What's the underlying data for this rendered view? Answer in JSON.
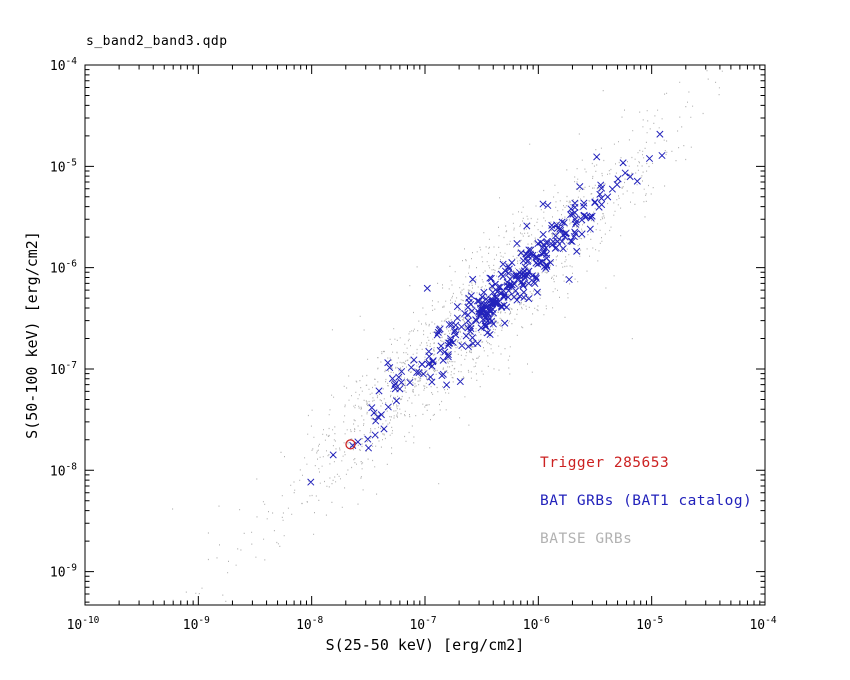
{
  "chart_data": {
    "type": "scatter",
    "title": "s_band2_band3.qdp",
    "xlabel": "S(25-50 keV) [erg/cm2]",
    "ylabel": "S(50-100 keV) [erg/cm2]",
    "x_scale": "log",
    "y_scale": "log",
    "xlim_log10": [
      -10,
      -4
    ],
    "ylim_log10": [
      -9.33,
      -4
    ],
    "x_major_ticks_log10": [
      -10,
      -9,
      -8,
      -7,
      -6,
      -5,
      -4
    ],
    "y_major_ticks_log10": [
      -9,
      -8,
      -7,
      -6,
      -5,
      -4
    ],
    "grid": false,
    "frame": "box-with-inward-ticks",
    "series": [
      {
        "name": "BATSE GRBs",
        "marker": "dot",
        "color": "#b2b2b2",
        "n": 1800,
        "gen": {
          "seed": 42,
          "logx_mean": -6.6,
          "logx_sd": 0.78,
          "uniform_frac": 0.03,
          "logx_uniform_min": -9.7,
          "logx_uniform_max": -4.6,
          "slope": 1.05,
          "intercept": 0.4,
          "logy_scatter": 0.28,
          "outlier_frac": 0.05,
          "outlier_scatter": 0.65
        }
      },
      {
        "name": "BAT GRBs (BAT1 catalog)",
        "marker": "cross",
        "color": "#2222bb",
        "n": 340,
        "gen": {
          "seed": 7,
          "logx_mean": -6.35,
          "logx_sd": 0.55,
          "uniform_frac": 0.02,
          "logx_uniform_min": -8.2,
          "logx_uniform_max": -5.1,
          "slope": 1.05,
          "intercept": 0.4,
          "logy_scatter": 0.13,
          "outlier_frac": 0.03,
          "outlier_scatter": 0.3
        }
      },
      {
        "name": "Trigger 285653",
        "marker": "open-circle",
        "color": "#cc2222",
        "points": [
          [
            2.2e-08,
            1.8e-08
          ]
        ]
      }
    ]
  },
  "legend": {
    "items": [
      {
        "label": "Trigger 285653",
        "color": "#cc2222"
      },
      {
        "label": "BAT GRBs (BAT1 catalog)",
        "color": "#2222bb"
      },
      {
        "label": "BATSE GRBs",
        "color": "#b2b2b2"
      }
    ]
  },
  "colors": {
    "frame": "#000000",
    "text": "#000000",
    "background": "#ffffff"
  }
}
